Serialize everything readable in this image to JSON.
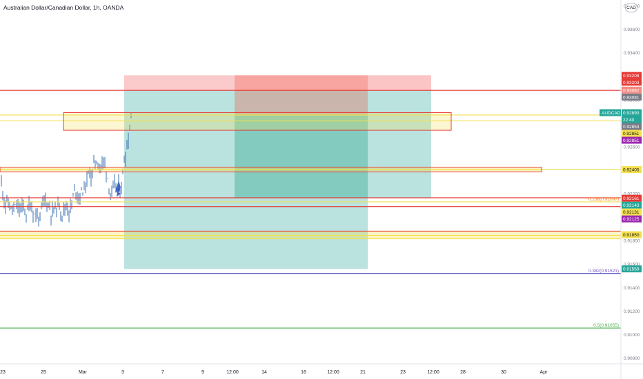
{
  "header": {
    "title": "Australian Dollar/Canadian Dollar, 1h, OANDA",
    "currency_button": "CAD"
  },
  "colors": {
    "background": "#ffffff",
    "candle": "#3a6fb0",
    "target_zone": "#b2dfdb",
    "target_zone_dark": "#7fc8bd",
    "stop_zone": "#fbc4c4",
    "stop_zone_dark": "#f7a19c",
    "red_line": "#e53935",
    "yellow_line": "#f4e04d",
    "blue_line": "#3b3bbf",
    "green_line": "#4caf50",
    "axis_text": "#787b86"
  },
  "chart_data": {
    "type": "candlestick",
    "symbol": "AUDCAD",
    "timeframe": "1h",
    "source": "OANDA",
    "price_axis": {
      "min": 0.9075,
      "max": 0.9385,
      "ticks": [
        "0.93800",
        "0.93600",
        "0.93400",
        "0.93000",
        "0.92600",
        "0.92200",
        "0.92000",
        "0.91800",
        "0.91600",
        "0.91400",
        "0.91200",
        "0.91000",
        "0.90800"
      ]
    },
    "time_axis": {
      "labels": [
        "23",
        "25",
        "Mar",
        "3",
        "7",
        "9",
        "12:00",
        "14",
        "16",
        "12:00",
        "21",
        "23",
        "12:00",
        "28",
        "30",
        "Apr"
      ]
    },
    "price_labels": [
      {
        "text": "0.93208",
        "price": 0.93208,
        "color": "#e53935",
        "text_color": "#ffffff"
      },
      {
        "text": "0.93203",
        "price": 0.93203,
        "color": "#e53935",
        "text_color": "#ffffff"
      },
      {
        "text": "0.93082",
        "price": 0.93082,
        "color": "#f28b82",
        "text_color": "#ffffff"
      },
      {
        "text": "0.93081",
        "price": 0.93081,
        "color": "#787b86",
        "text_color": "#ffffff"
      },
      {
        "text": "0.92890",
        "price": 0.9289,
        "color": "#26a69a",
        "text_color": "#ffffff"
      },
      {
        "text": "22:40",
        "price": 0.92855,
        "color": "#26a69a",
        "text_color": "#ffffff"
      },
      {
        "text": "0.92853",
        "price": 0.92853,
        "color": "#787b86",
        "text_color": "#ffffff"
      },
      {
        "text": "0.92851",
        "price": 0.92851,
        "color": "#f4e04d",
        "text_color": "#131722"
      },
      {
        "text": "0.92851",
        "price": 0.92851,
        "color": "#9c27b0",
        "text_color": "#ffffff"
      },
      {
        "text": "0.92405",
        "price": 0.92405,
        "color": "#f4e04d",
        "text_color": "#131722"
      },
      {
        "text": "0.92161",
        "price": 0.92161,
        "color": "#e53935",
        "text_color": "#ffffff"
      },
      {
        "text": "0.92143",
        "price": 0.92143,
        "color": "#26a69a",
        "text_color": "#ffffff"
      },
      {
        "text": "0.92131",
        "price": 0.92131,
        "color": "#f4e04d",
        "text_color": "#131722"
      },
      {
        "text": "0.92125",
        "price": 0.92125,
        "color": "#9c27b0",
        "text_color": "#ffffff"
      },
      {
        "text": "0.91850",
        "price": 0.9185,
        "color": "#f4e04d",
        "text_color": "#131722"
      },
      {
        "text": "0.91559",
        "price": 0.91559,
        "color": "#26a69a",
        "text_color": "#ffffff"
      }
    ],
    "symbol_tag": {
      "text": "AUDCAD",
      "price": 0.9289,
      "color": "#26a69a"
    },
    "horizontal_lines": [
      {
        "price": 0.9308,
        "color": "#e53935",
        "x_from": 0,
        "x_to": 900
      },
      {
        "price": 0.9287,
        "color": "#f4e04d",
        "x_from": 0,
        "x_to": 900
      },
      {
        "price": 0.9282,
        "color": "#f4e04d",
        "x_from": 0,
        "x_to": 900
      },
      {
        "price": 0.92405,
        "color": "#f4e04d",
        "x_from": 0,
        "x_to": 900
      },
      {
        "price": 0.92165,
        "color": "#e53935",
        "x_from": 0,
        "x_to": 900
      },
      {
        "price": 0.9213,
        "color": "#f4e04d",
        "x_from": 0,
        "x_to": 900
      },
      {
        "price": 0.9209,
        "color": "#e53935",
        "x_from": 0,
        "x_to": 900
      },
      {
        "price": 0.9188,
        "color": "#e53935",
        "x_from": 0,
        "x_to": 900
      },
      {
        "price": 0.91845,
        "color": "#f4e04d",
        "x_from": 0,
        "x_to": 900
      },
      {
        "price": 0.91818,
        "color": "#f4e04d",
        "x_from": 0,
        "x_to": 900
      },
      {
        "price": 0.9152,
        "color": "#3b3bbf",
        "x_from": 0,
        "x_to": 900
      },
      {
        "price": 0.91055,
        "color": "#4caf50",
        "x_from": 0,
        "x_to": 900
      }
    ],
    "fib_labels": [
      {
        "text": "0.382(0.91521)",
        "price": 0.9152,
        "color": "#7e57c2"
      },
      {
        "text": "0.5(0.91055)",
        "price": 0.91055,
        "color": "#4caf50"
      },
      {
        "text": "0.236(0.92097)",
        "price": 0.9213,
        "color": "#f57c00"
      }
    ]
  }
}
